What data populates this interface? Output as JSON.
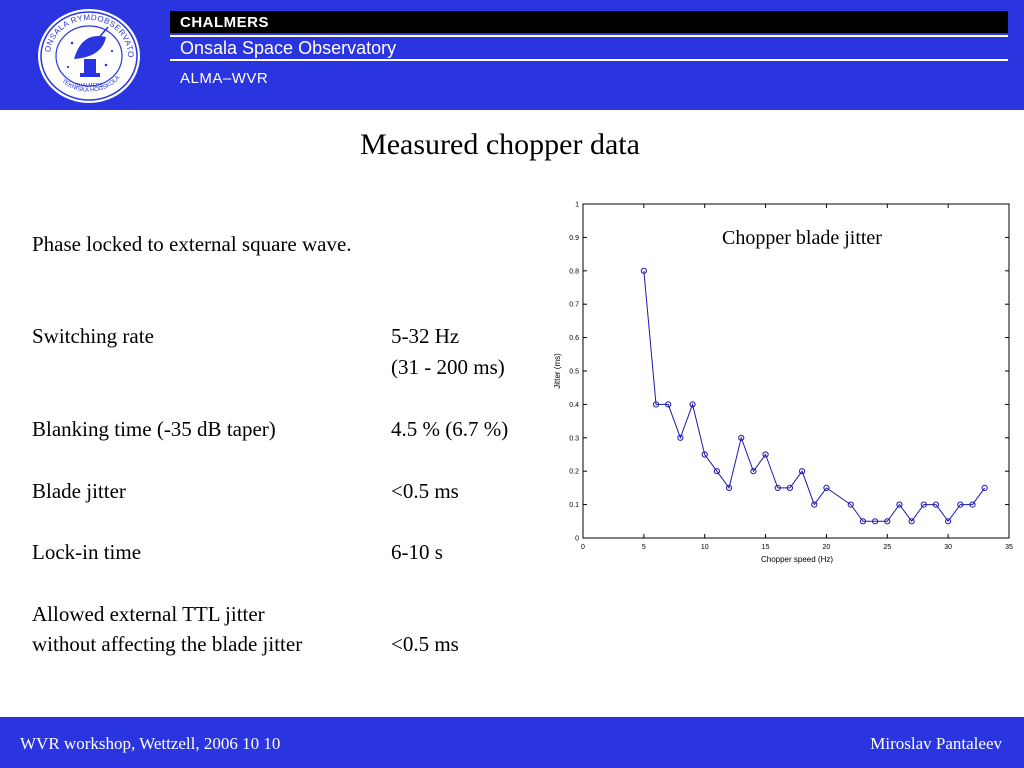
{
  "header": {
    "logo_text": "ONSALA RYMDOBSERVATORIUM CHALMERS TEKNISKA HÖGSKOLA",
    "org": "CHALMERS",
    "observatory": "Onsala Space Observatory",
    "project": "ALMA–WVR"
  },
  "slide": {
    "title": "Measured chopper data",
    "intro": "Phase locked to external square wave.",
    "specs": [
      {
        "label": "Switching rate",
        "value": "5-32 Hz",
        "value2": "(31 - 200 ms)"
      },
      {
        "label": "Blanking time (-35 dB taper)",
        "value": "4.5 %  (6.7 %)"
      },
      {
        "label": "Blade jitter",
        "value": "<0.5 ms"
      },
      {
        "label": "Lock-in time",
        "value": "6-10 s"
      },
      {
        "label": "Allowed external TTL jitter",
        "label2": "without affecting the blade jitter",
        "value": "<0.5 ms"
      }
    ]
  },
  "chart_data": {
    "type": "line",
    "title": "Chopper blade jitter",
    "xlabel": "Chopper speed (Hz)",
    "ylabel": "Jitter (ms)",
    "xlim": [
      0,
      35
    ],
    "ylim": [
      0,
      1
    ],
    "xticks": [
      0,
      5,
      10,
      15,
      20,
      25,
      30,
      35
    ],
    "yticks": [
      0,
      0.1,
      0.2,
      0.3,
      0.4,
      0.5,
      0.6,
      0.7,
      0.8,
      0.9,
      1
    ],
    "grid": false,
    "color": "#1a1aaa",
    "x": [
      5,
      6,
      7,
      8,
      9,
      10,
      11,
      12,
      13,
      14,
      15,
      16,
      17,
      18,
      19,
      20,
      22,
      23,
      24,
      25,
      26,
      27,
      28,
      29,
      30,
      31,
      32,
      33
    ],
    "y": [
      0.8,
      0.4,
      0.4,
      0.3,
      0.4,
      0.25,
      0.2,
      0.15,
      0.3,
      0.2,
      0.25,
      0.15,
      0.15,
      0.2,
      0.1,
      0.15,
      0.1,
      0.05,
      0.05,
      0.05,
      0.1,
      0.05,
      0.1,
      0.1,
      0.05,
      0.1,
      0.1,
      0.15
    ]
  },
  "footer": {
    "left": "WVR workshop, Wettzell, 2006 10 10",
    "right": "Miroslav Pantaleev"
  }
}
